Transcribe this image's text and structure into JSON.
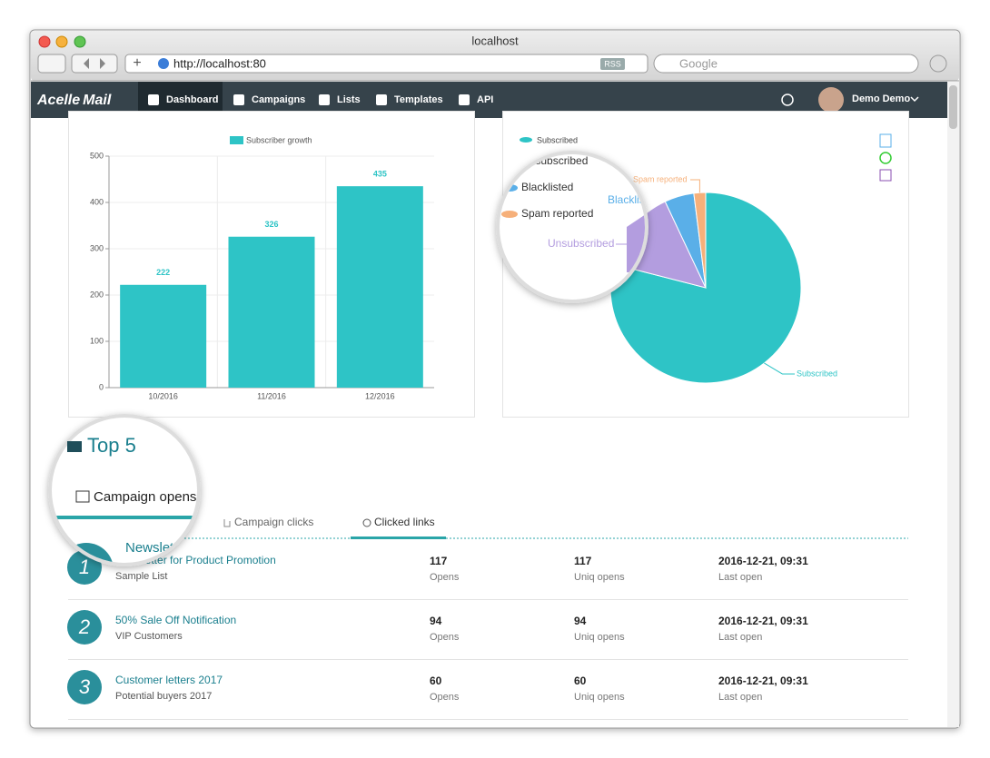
{
  "browser": {
    "title": "localhost",
    "url": "http://localhost:80",
    "rss": "RSS",
    "search_placeholder": "Google"
  },
  "nav": {
    "brand": [
      "Acelle",
      "Mail"
    ],
    "items": [
      "Dashboard",
      "Campaigns",
      "Lists",
      "Templates",
      "API"
    ],
    "user": "Demo Demo"
  },
  "chart_data": [
    {
      "type": "bar",
      "categories": [
        "10/2016",
        "11/2016",
        "12/2016"
      ],
      "series": [
        {
          "name": "Subscriber growth",
          "color": "#2ec4c6",
          "values": [
            222,
            326,
            435
          ]
        }
      ],
      "ylim": [
        0,
        500
      ],
      "yticks": [
        0,
        100,
        200,
        300,
        400,
        500
      ],
      "grid": true
    },
    {
      "type": "pie",
      "categories": [
        "Subscribed",
        "Unsubscribed",
        "Blacklisted",
        "Spam reported"
      ],
      "values": [
        79,
        14,
        5,
        2
      ],
      "colors": [
        "#2ec4c6",
        "#b39ddf",
        "#5aafe8",
        "#f6b07a"
      ]
    }
  ],
  "top5": {
    "title": "Top 5",
    "tabs": [
      "Campaign opens",
      "Campaign clicks",
      "Clicked links"
    ],
    "rows": [
      {
        "rank": 1,
        "name": "Newsletter for Product Promotion",
        "list": "Sample List",
        "opens": 117,
        "opens_label": "Opens",
        "uniq": 117,
        "uniq_label": "Uniq opens",
        "last": "2016-12-21, 09:31",
        "last_label": "Last open"
      },
      {
        "rank": 2,
        "name": "50% Sale Off Notification",
        "list": "VIP Customers",
        "opens": 94,
        "opens_label": "Opens",
        "uniq": 94,
        "uniq_label": "Uniq opens",
        "last": "2016-12-21, 09:31",
        "last_label": "Last open"
      },
      {
        "rank": 3,
        "name": "Customer letters 2017",
        "list": "Potential buyers 2017",
        "opens": 60,
        "opens_label": "Opens",
        "uniq": 60,
        "uniq_label": "Uniq opens",
        "last": "2016-12-21, 09:31",
        "last_label": "Last open"
      }
    ]
  }
}
